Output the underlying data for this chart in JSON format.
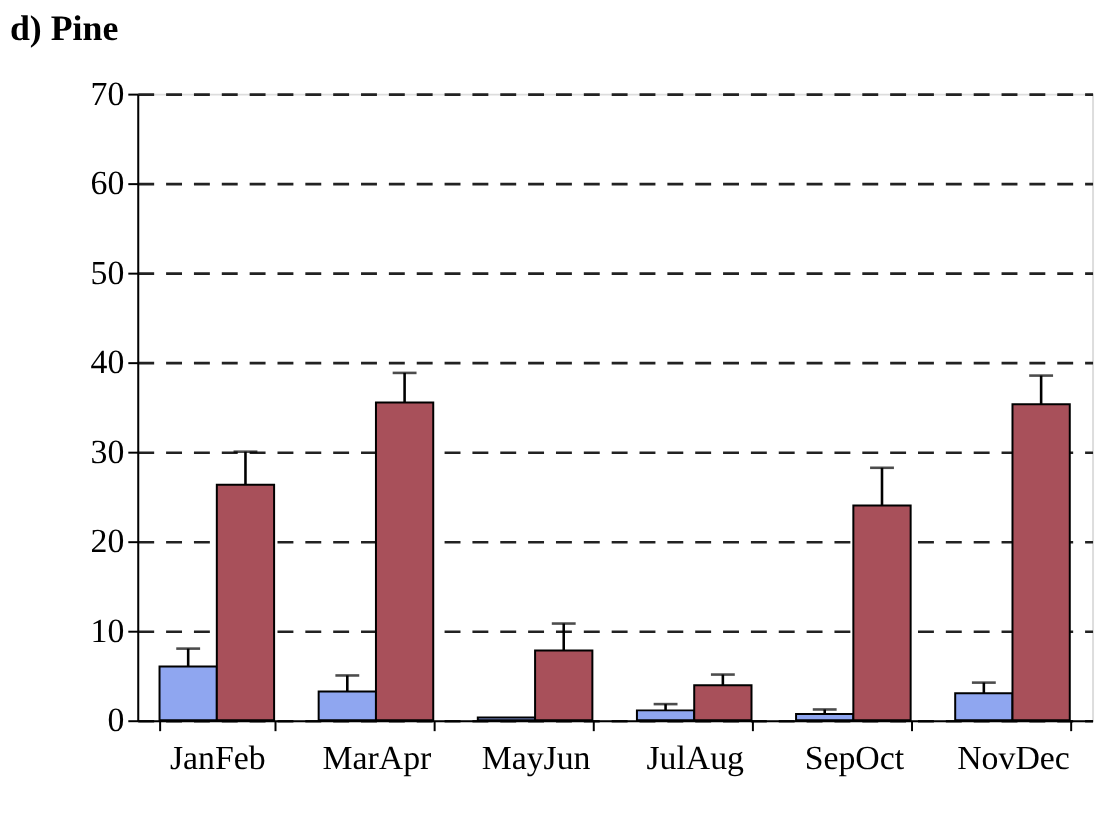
{
  "chart_data": {
    "type": "bar",
    "title": "d) Pine",
    "categories": [
      "JanFeb",
      "MarApr",
      "MayJun",
      "JulAug",
      "SepOct",
      "NovDec"
    ],
    "series": [
      {
        "color": "#8fa6f0",
        "values": [
          6,
          3.2,
          0.3,
          1.1,
          0.7,
          3
        ],
        "errors": [
          [
            6,
            8
          ],
          [
            3.2,
            5
          ],
          null,
          [
            1.1,
            1.8
          ],
          [
            0.7,
            1.2
          ],
          [
            3,
            4.2
          ]
        ]
      },
      {
        "color": "#a8505a",
        "values": [
          26.3,
          35.5,
          7.8,
          3.9,
          24,
          35.3
        ],
        "errors": [
          [
            26.3,
            30
          ],
          [
            35.5,
            38.8
          ],
          [
            7.8,
            10.8
          ],
          [
            3.9,
            5.1
          ],
          [
            24,
            28.2
          ],
          [
            35.3,
            38.5
          ]
        ]
      }
    ],
    "ylim": [
      0,
      70
    ],
    "yticks": [
      0,
      10,
      20,
      30,
      40,
      50,
      60,
      70
    ],
    "grid": "y",
    "legend": false
  }
}
